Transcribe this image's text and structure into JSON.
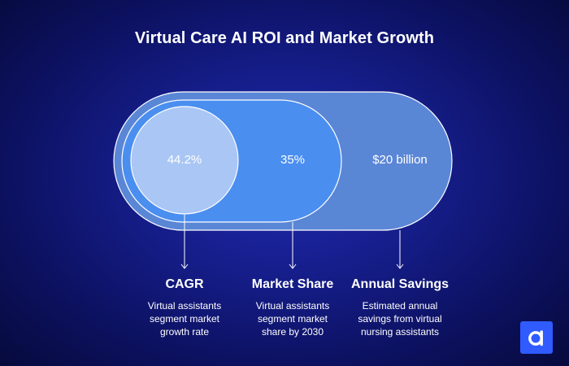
{
  "title": "Virtual Care AI ROI and Market Growth",
  "metrics": [
    {
      "value": "44.2%",
      "label": "CAGR",
      "description": [
        "Virtual assistants",
        "segment market",
        "growth rate"
      ]
    },
    {
      "value": "35%",
      "label": "Market Share",
      "description": [
        "Virtual assistants",
        "segment market",
        "share by 2030"
      ]
    },
    {
      "value": "$20 billion",
      "label": "Annual Savings",
      "description": [
        "Estimated annual",
        "savings from virtual",
        "nursing assistants"
      ]
    }
  ],
  "colors": {
    "outer_pill": "#5a86d6",
    "middle_pill": "#4a8ef0",
    "inner_circle": "#a9c6f5",
    "outline": "#ffffff",
    "logo": "#2f5bff"
  },
  "logo_icon": "brand-a-logo-icon"
}
